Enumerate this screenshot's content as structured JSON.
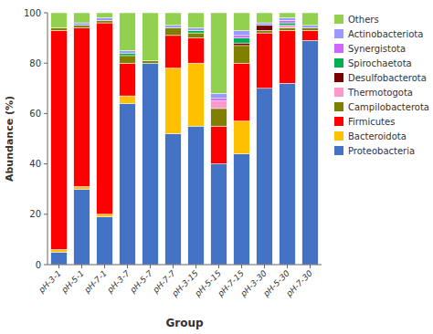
{
  "chart_data": {
    "type": "bar",
    "stacked": true,
    "grid": false,
    "legend": "right",
    "x_label": "Group",
    "y_label": "Abundance (%)",
    "categories": [
      "pH-3-1",
      "pH-5-1",
      "pH-7-1",
      "pH-3-7",
      "pH-5-7",
      "pH-7-7",
      "pH-3-15",
      "pH-5-15",
      "pH-7-15",
      "pH-3-30",
      "pH-5-30",
      "pH-7-30"
    ],
    "series": [
      {
        "name": "Proteobacteria",
        "color": "#4472C4",
        "values": [
          5,
          30,
          19,
          64,
          80,
          52,
          55,
          40,
          44,
          70,
          72,
          89
        ]
      },
      {
        "name": "Bacteroidota",
        "color": "#FFC000",
        "values": [
          1,
          1,
          1,
          3,
          0,
          26,
          25,
          0,
          13,
          0,
          0,
          0
        ]
      },
      {
        "name": "Firmicutes",
        "color": "#FF0000",
        "values": [
          87,
          63,
          76,
          13,
          0,
          13,
          10,
          15,
          23,
          22,
          21,
          4
        ]
      },
      {
        "name": "Campilobacterota",
        "color": "#808000",
        "values": [
          1,
          1,
          1,
          3,
          1,
          3,
          2,
          7,
          7,
          1,
          1,
          1
        ]
      },
      {
        "name": "Thermotogota",
        "color": "#FF99CC",
        "values": [
          0,
          0,
          0,
          0,
          0,
          0,
          0,
          3,
          0,
          0,
          1,
          0
        ]
      },
      {
        "name": "Desulfobacterota",
        "color": "#7B0000",
        "values": [
          0,
          0,
          0,
          0,
          0,
          0,
          0,
          0,
          1,
          2,
          0,
          0
        ]
      },
      {
        "name": "Spirochaetota",
        "color": "#00B050",
        "values": [
          0,
          0,
          0,
          1,
          0,
          0,
          1,
          0,
          2,
          0,
          1,
          0
        ]
      },
      {
        "name": "Synergistota",
        "color": "#CC66FF",
        "values": [
          0,
          0,
          0,
          0,
          0,
          0,
          0,
          1,
          1,
          0,
          1,
          0
        ]
      },
      {
        "name": "Actinobacteriota",
        "color": "#9999FF",
        "values": [
          0,
          1,
          1,
          1,
          0,
          1,
          1,
          2,
          2,
          1,
          1,
          1
        ]
      },
      {
        "name": "Others",
        "color": "#92D050",
        "values": [
          6,
          4,
          2,
          15,
          19,
          5,
          6,
          32,
          7,
          4,
          2,
          5
        ]
      }
    ],
    "ylim": [
      0,
      100
    ],
    "yticks": [
      0,
      20,
      40,
      60,
      80,
      100
    ]
  }
}
